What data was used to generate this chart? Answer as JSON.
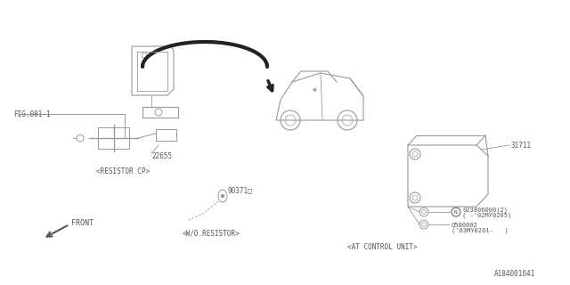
{
  "bg_color": "#ffffff",
  "line_color": "#999999",
  "dark_line_color": "#555555",
  "text_color": "#555555",
  "fig_width": 6.4,
  "fig_height": 3.2,
  "labels": {
    "fig_ref": "FIG.081-1",
    "part_22655": "22655",
    "part_31711": "31711",
    "part_90371": "90371□",
    "resistor_cp": "<RESISTOR CP>",
    "wo_resistor": "<W/O.RESISTOR>",
    "at_control": "<AT CONTROL UNIT>",
    "front": "FRONT",
    "diagram_id": "A184001041"
  }
}
